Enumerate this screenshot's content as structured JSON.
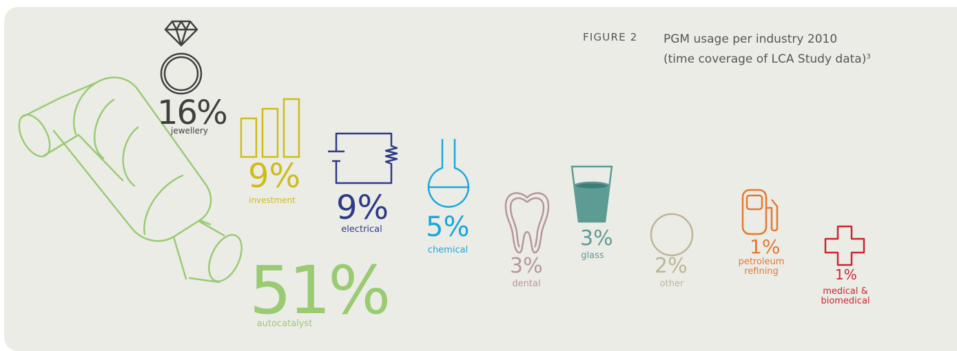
{
  "figure": {
    "label": "FIGURE 2",
    "title_line1": "PGM usage per industry 2010",
    "title_line2": "(time coverage of LCA Study data)",
    "footnote": "3"
  },
  "colors": {
    "background": "#ecece7",
    "jewellery": "#3f3f3f",
    "investment": "#cdbc1c",
    "electrical": "#2e3a86",
    "chemical": "#1ba7dc",
    "dental": "#b5969a",
    "glass": "#5c9c94",
    "other": "#bdb596",
    "petroleum_refining": "#e3782f",
    "medical_biomedical": "#c92630",
    "autocatalyst": "#9acb73"
  },
  "chart_data": {
    "type": "pictograph",
    "title": "PGM usage per industry 2010",
    "subtitle": "(time coverage of LCA Study data)",
    "unit": "%",
    "categories": [
      "autocatalyst",
      "jewellery",
      "investment",
      "electrical",
      "chemical",
      "dental",
      "glass",
      "other",
      "petroleum refining",
      "medical & biomedical"
    ],
    "values": [
      51,
      16,
      9,
      9,
      5,
      3,
      3,
      2,
      1,
      1
    ],
    "items": [
      {
        "key": "autocatalyst",
        "value_text": "51%",
        "label": "autocatalyst",
        "icon": "catalytic-converter-icon"
      },
      {
        "key": "jewellery",
        "value_text": "16%",
        "label": "jewellery",
        "icon": "diamond-ring-icon"
      },
      {
        "key": "investment",
        "value_text": "9%",
        "label": "investment",
        "icon": "bar-chart-icon"
      },
      {
        "key": "electrical",
        "value_text": "9%",
        "label": "electrical",
        "icon": "circuit-icon"
      },
      {
        "key": "chemical",
        "value_text": "5%",
        "label": "chemical",
        "icon": "flask-icon"
      },
      {
        "key": "dental",
        "value_text": "3%",
        "label": "dental",
        "icon": "tooth-icon"
      },
      {
        "key": "glass",
        "value_text": "3%",
        "label": "glass",
        "icon": "glass-icon"
      },
      {
        "key": "other",
        "value_text": "2%",
        "label": "other",
        "icon": "circle-icon"
      },
      {
        "key": "petroleum_refining",
        "value_text": "1%",
        "label_line1": "petroleum",
        "label_line2": "refining",
        "icon": "fuel-pump-icon"
      },
      {
        "key": "medical_biomedical",
        "value_text": "1%",
        "label_line1": "medical &",
        "label_line2": "biomedical",
        "icon": "medical-cross-icon"
      }
    ]
  }
}
